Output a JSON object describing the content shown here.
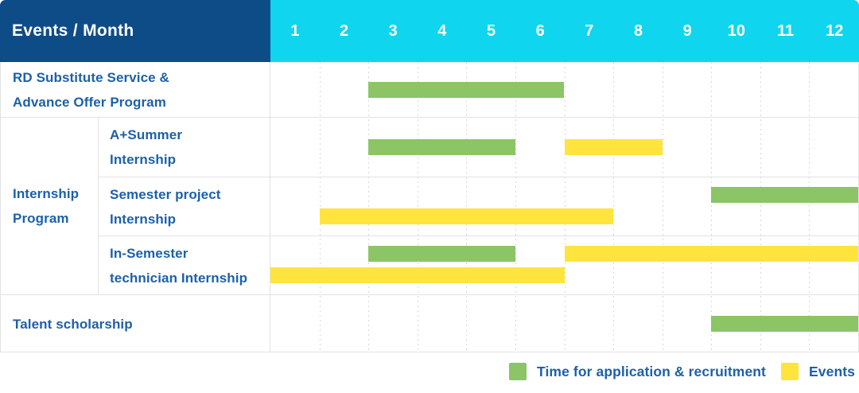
{
  "table": {
    "header_label": "Events / Month",
    "months": [
      "1",
      "2",
      "3",
      "4",
      "5",
      "6",
      "7",
      "8",
      "9",
      "10",
      "11",
      "12"
    ],
    "rows": [
      {
        "label": "RD Substitute Service & Advance Offer Program",
        "lines": [
          "RD Substitute Service &",
          "Advance Offer Program"
        ]
      },
      {
        "label": "A+Summer Internship",
        "lines": [
          "A+Summer",
          "Internship"
        ]
      },
      {
        "label": "Semester project Internship",
        "lines": [
          "Semester project",
          "Internship"
        ]
      },
      {
        "label": "In-Semester technician Internship",
        "lines": [
          "In-Semester",
          "technician Internship"
        ]
      },
      {
        "label": "Talent scholarship",
        "lines": [
          "Talent scholarship"
        ]
      }
    ],
    "group": {
      "label": "Internship Program",
      "lines": [
        "Internship",
        "Program"
      ]
    }
  },
  "legend": {
    "items": [
      {
        "color": "green",
        "label": "Time for application & recruitment"
      },
      {
        "color": "yellow",
        "label": "Events"
      }
    ]
  },
  "colors": {
    "header_navy": "#0E4C87",
    "header_cyan": "#0FD6EE",
    "green": "#8BC566",
    "yellow": "#FFE43E",
    "label_blue": "#1C60A9",
    "grid_line": "#E2E2E2"
  },
  "chart_data": {
    "type": "gantt",
    "title": "Events / Month",
    "x_unit": "month",
    "x_ticks": [
      1,
      2,
      3,
      4,
      5,
      6,
      7,
      8,
      9,
      10,
      11,
      12
    ],
    "x_range": [
      1,
      12
    ],
    "grid": "dashed-vertical-month-lines",
    "legend_position": "bottom-right",
    "legend": {
      "green": "Time for application & recruitment",
      "yellow": "Events"
    },
    "tasks": [
      {
        "name": "RD Substitute Service & Advance Offer Program",
        "bars": [
          {
            "type": "application",
            "color": "green",
            "start_month": 3,
            "end_month": 6,
            "lane": "center"
          }
        ]
      },
      {
        "name": "A+Summer Internship",
        "group": "Internship Program",
        "bars": [
          {
            "type": "application",
            "color": "green",
            "start_month": 3,
            "end_month": 5,
            "lane": "center"
          },
          {
            "type": "event",
            "color": "yellow",
            "start_month": 7,
            "end_month": 8,
            "lane": "center"
          }
        ]
      },
      {
        "name": "Semester project Internship",
        "group": "Internship Program",
        "bars": [
          {
            "type": "application",
            "color": "green",
            "start_month": 10,
            "end_month": 12,
            "lane": "top"
          },
          {
            "type": "event",
            "color": "yellow",
            "start_month": 2,
            "end_month": 7,
            "lane": "bottom"
          }
        ]
      },
      {
        "name": "In-Semester technician Internship",
        "group": "Internship Program",
        "bars": [
          {
            "type": "application",
            "color": "green",
            "start_month": 3,
            "end_month": 5,
            "lane": "top"
          },
          {
            "type": "event",
            "color": "yellow",
            "start_month": 7,
            "end_month": 12,
            "lane": "top"
          },
          {
            "type": "event",
            "color": "yellow",
            "start_month": 1,
            "end_month": 6,
            "lane": "bottom"
          }
        ]
      },
      {
        "name": "Talent scholarship",
        "bars": [
          {
            "type": "application",
            "color": "green",
            "start_month": 10,
            "end_month": 12,
            "lane": "center"
          }
        ]
      }
    ]
  }
}
